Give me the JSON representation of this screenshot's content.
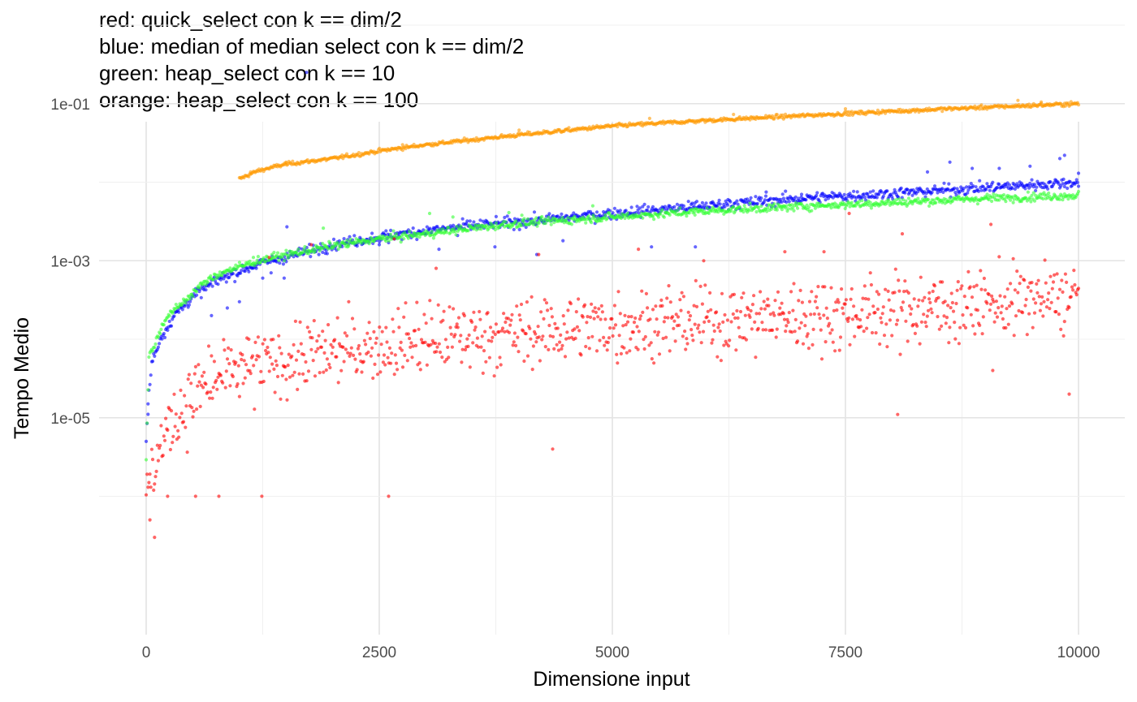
{
  "chart_data": {
    "type": "scatter",
    "title_lines": [
      "red: quick_select con k == dim/2",
      "blue: median of median select con k == dim/2",
      "green: heap_select con k == 10",
      "orange: heap_select con k == 100"
    ],
    "xlabel": "Dimensione input",
    "ylabel": "Tempo Medio",
    "xlim": [
      0,
      10000
    ],
    "ylim": [
      1e-07,
      1
    ],
    "y_scale": "log10",
    "x_ticks": [
      0,
      2500,
      5000,
      7500,
      10000
    ],
    "x_tick_labels": [
      "0",
      "2500",
      "5000",
      "7500",
      "10000"
    ],
    "y_ticks": [
      1e-05,
      0.001,
      0.1
    ],
    "y_tick_labels": [
      "1e-05",
      "1e-03",
      "1e-01"
    ],
    "grid": true,
    "legend": "none",
    "series": [
      {
        "color": "#ff0000",
        "x_range": [
          0,
          10000
        ],
        "n_points": 1000,
        "trend": [
          [
            0,
            1e-06
          ],
          [
            100,
            3e-06
          ],
          [
            300,
            1e-05
          ],
          [
            600,
            2.5e-05
          ],
          [
            1000,
            4e-05
          ],
          [
            2000,
            7e-05
          ],
          [
            3000,
            0.0001
          ],
          [
            4000,
            0.00012
          ],
          [
            5000,
            0.00015
          ],
          [
            6000,
            0.00017
          ],
          [
            7000,
            0.0002
          ],
          [
            8000,
            0.00023
          ],
          [
            9000,
            0.00028
          ],
          [
            10000,
            0.00035
          ]
        ],
        "outliers": [
          [
            1320,
            0.0011
          ],
          [
            1770,
            0.0016
          ],
          [
            2660,
            0.0019
          ],
          [
            3110,
            0.0008
          ],
          [
            4210,
            0.0012
          ],
          [
            5280,
            0.0014
          ],
          [
            5980,
            0.001
          ],
          [
            6850,
            0.0013
          ],
          [
            7270,
            0.0013
          ],
          [
            7540,
            0.004
          ],
          [
            8110,
            0.0022
          ],
          [
            8400,
            0.00039
          ],
          [
            9060,
            0.0029
          ],
          [
            1240,
            1e-06
          ],
          [
            2600,
            1e-06
          ],
          [
            4360,
            4e-06
          ],
          [
            8060,
            1.1e-05
          ],
          [
            9900,
            2e-05
          ],
          [
            9080,
            4e-05
          ],
          [
            230,
            1e-06
          ],
          [
            530,
            1e-06
          ],
          [
            780,
            1e-06
          ],
          [
            90,
            3e-07
          ],
          [
            40,
            5e-07
          ]
        ]
      },
      {
        "color": "#0000ff",
        "x_range": [
          0,
          10000
        ],
        "n_points": 1000,
        "trend": [
          [
            0,
            5e-06
          ],
          [
            30,
            2e-05
          ],
          [
            60,
            5e-05
          ],
          [
            150,
            0.0001
          ],
          [
            300,
            0.0002
          ],
          [
            500,
            0.00035
          ],
          [
            800,
            0.0006
          ],
          [
            1200,
            0.0009
          ],
          [
            1600,
            0.0012
          ],
          [
            2000,
            0.0016
          ],
          [
            2500,
            0.002
          ],
          [
            3000,
            0.0024
          ],
          [
            3500,
            0.0028
          ],
          [
            4000,
            0.0031
          ],
          [
            5000,
            0.004
          ],
          [
            6000,
            0.005
          ],
          [
            7000,
            0.0062
          ],
          [
            8000,
            0.0072
          ],
          [
            9000,
            0.0085
          ],
          [
            10000,
            0.01
          ]
        ],
        "outliers": [
          [
            1720,
            0.25
          ],
          [
            1510,
            0.0027
          ],
          [
            2500,
            0.0016
          ],
          [
            2600,
            0.0017
          ],
          [
            3340,
            0.0021
          ],
          [
            3140,
            0.0014
          ],
          [
            3740,
            0.0015
          ],
          [
            4190,
            0.0012
          ],
          [
            4470,
            0.0018
          ],
          [
            5420,
            0.0015
          ],
          [
            5890,
            0.0015
          ],
          [
            6240,
            0.006
          ],
          [
            6650,
            0.0075
          ],
          [
            7030,
            0.007
          ],
          [
            8380,
            0.0135
          ],
          [
            8620,
            0.018
          ],
          [
            8860,
            0.015
          ],
          [
            9150,
            0.015
          ],
          [
            9480,
            0.016
          ],
          [
            9800,
            0.02
          ],
          [
            9850,
            0.022
          ],
          [
            10000,
            0.013
          ],
          [
            1250,
            0.0006
          ],
          [
            1340,
            0.0007
          ],
          [
            1480,
            0.0006
          ],
          [
            700,
            0.0002
          ],
          [
            870,
            0.00025
          ],
          [
            1000,
            0.0003
          ],
          [
            20,
            1.5e-05
          ]
        ]
      },
      {
        "color": "#33ff33",
        "x_range": [
          0,
          10000
        ],
        "n_points": 1000,
        "trend": [
          [
            0,
            3e-06
          ],
          [
            30,
            6e-05
          ],
          [
            100,
            9e-05
          ],
          [
            200,
            0.00018
          ],
          [
            400,
            0.0003
          ],
          [
            600,
            0.0005
          ],
          [
            800,
            0.0007
          ],
          [
            1200,
            0.001
          ],
          [
            1600,
            0.00125
          ],
          [
            2000,
            0.00155
          ],
          [
            2500,
            0.0019
          ],
          [
            3000,
            0.0022
          ],
          [
            3500,
            0.0026
          ],
          [
            4000,
            0.003
          ],
          [
            5000,
            0.0036
          ],
          [
            6000,
            0.0043
          ],
          [
            7000,
            0.0049
          ],
          [
            8000,
            0.0055
          ],
          [
            9000,
            0.0062
          ],
          [
            10000,
            0.0068
          ]
        ],
        "outliers": [
          [
            1900,
            0.0026
          ],
          [
            2160,
            0.0015
          ],
          [
            3040,
            0.004
          ],
          [
            3290,
            0.0036
          ],
          [
            3890,
            0.0041
          ],
          [
            4030,
            0.0038
          ],
          [
            4790,
            0.005
          ],
          [
            5880,
            0.0042
          ],
          [
            6820,
            0.0045
          ],
          [
            9020,
            0.007
          ],
          [
            1150,
            0.0011
          ],
          [
            1350,
            0.0012
          ]
        ]
      },
      {
        "color": "#ff9900",
        "x_range": [
          1000,
          10000
        ],
        "n_points": 900,
        "trend": [
          [
            1000,
            0.011
          ],
          [
            1200,
            0.014
          ],
          [
            1500,
            0.017
          ],
          [
            2000,
            0.02
          ],
          [
            2500,
            0.025
          ],
          [
            3000,
            0.03
          ],
          [
            4000,
            0.04
          ],
          [
            5000,
            0.052
          ],
          [
            6000,
            0.061
          ],
          [
            7000,
            0.07
          ],
          [
            8000,
            0.08
          ],
          [
            9000,
            0.09
          ],
          [
            10000,
            0.1
          ]
        ],
        "outliers": [
          [
            1120,
            0.0135
          ],
          [
            1500,
            0.018
          ],
          [
            5400,
            0.065
          ],
          [
            6300,
            0.073
          ],
          [
            7500,
            0.086
          ],
          [
            9350,
            0.11
          ],
          [
            9600,
            0.105
          ],
          [
            2750,
            0.03
          ],
          [
            4000,
            0.046
          ]
        ]
      }
    ]
  }
}
